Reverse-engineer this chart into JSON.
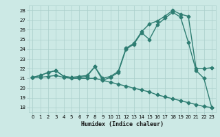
{
  "title": "",
  "xlabel": "Humidex (Indice chaleur)",
  "bg_color": "#cce9e5",
  "grid_color": "#aacfcb",
  "line_color": "#2e7d72",
  "xlim": [
    -0.5,
    23.5
  ],
  "ylim": [
    17.5,
    28.5
  ],
  "yticks": [
    18,
    19,
    20,
    21,
    22,
    23,
    24,
    25,
    26,
    27,
    28
  ],
  "xticks": [
    0,
    1,
    2,
    3,
    4,
    5,
    6,
    7,
    8,
    9,
    10,
    11,
    12,
    13,
    14,
    15,
    16,
    17,
    18,
    19,
    20,
    21,
    22,
    23
  ],
  "line1_x": [
    0,
    1,
    2,
    3,
    4,
    5,
    6,
    7,
    8,
    9,
    10,
    11,
    12,
    13,
    14,
    15,
    16,
    17,
    18,
    19,
    20,
    21,
    22,
    23
  ],
  "line1_y": [
    21.1,
    21.1,
    21.2,
    21.3,
    21.1,
    21.0,
    21.0,
    21.0,
    21.0,
    20.8,
    20.6,
    20.4,
    20.2,
    20.0,
    19.8,
    19.6,
    19.3,
    19.1,
    18.9,
    18.7,
    18.5,
    18.3,
    18.1,
    18.0
  ],
  "line2_x": [
    0,
    1,
    2,
    3,
    4,
    5,
    6,
    7,
    8,
    9,
    10,
    11,
    12,
    13,
    14,
    15,
    16,
    17,
    18,
    19,
    20,
    21,
    22,
    23
  ],
  "line2_y": [
    21.1,
    21.3,
    21.6,
    21.8,
    21.2,
    21.1,
    21.1,
    21.2,
    22.2,
    20.8,
    21.1,
    21.6,
    24.0,
    24.5,
    25.7,
    25.0,
    26.5,
    27.2,
    27.8,
    27.3,
    24.7,
    21.8,
    21.0,
    18.0
  ],
  "line3_x": [
    0,
    1,
    2,
    3,
    4,
    5,
    6,
    7,
    8,
    9,
    10,
    11,
    12,
    13,
    14,
    15,
    16,
    17,
    18,
    19,
    20,
    21,
    22,
    23
  ],
  "line3_y": [
    21.1,
    21.3,
    21.6,
    21.8,
    21.2,
    21.1,
    21.2,
    21.3,
    22.2,
    21.0,
    21.2,
    21.7,
    24.1,
    24.6,
    25.8,
    26.6,
    26.9,
    27.4,
    28.0,
    27.6,
    27.4,
    22.0,
    22.0,
    22.1
  ],
  "marker": "D",
  "markersize": 2.5,
  "linewidth": 1.0
}
